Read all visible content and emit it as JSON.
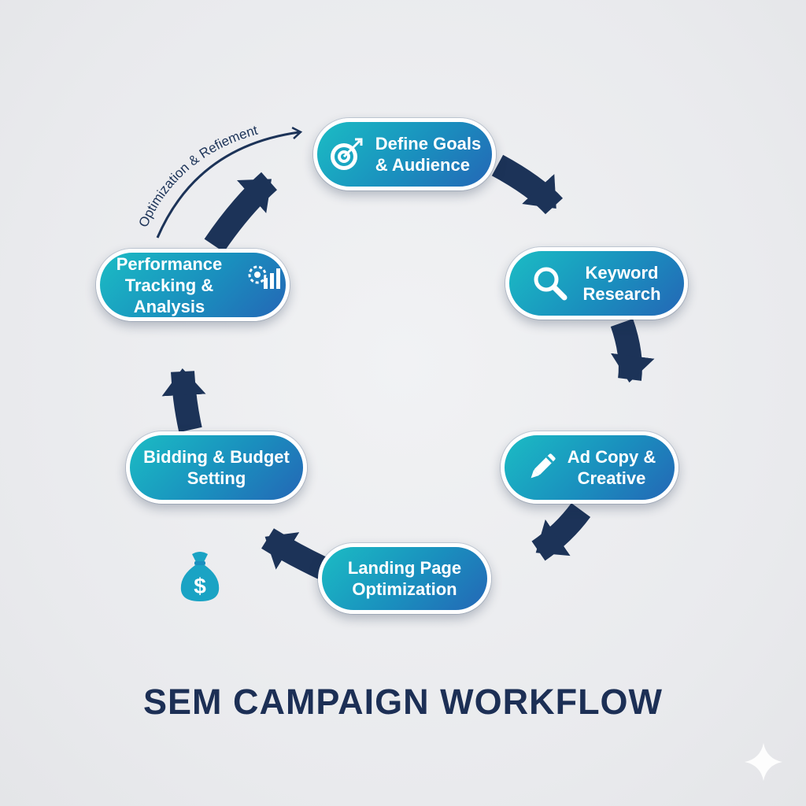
{
  "diagram": {
    "title": "SEM CAMPAIGN WORKFLOW",
    "loop_label": "Optimization & Refiement",
    "steps": [
      {
        "label": "Define Goals\n& Audience",
        "icon": "target-icon"
      },
      {
        "label": "Keyword\nResearch",
        "icon": "magnifier-icon"
      },
      {
        "label": "Ad Copy &\nCreative",
        "icon": "pencil-icon"
      },
      {
        "label": "Landing Page\nOptimization",
        "icon": ""
      },
      {
        "label": "Bidding & Budget\nSetting",
        "icon": ""
      },
      {
        "label": "Performance\nTracking & Analysis",
        "icon": "gear-chart-icon"
      }
    ],
    "standalone_icons": [
      "money-bag-icon",
      "sparkle-icon"
    ],
    "colors": {
      "pill_gradient_start": "#1bbcc4",
      "pill_gradient_end": "#2467b6",
      "arrow": "#1c3358",
      "title": "#1c2f55",
      "money_bag": "#1aa3c4",
      "background": "#eceef1"
    }
  }
}
